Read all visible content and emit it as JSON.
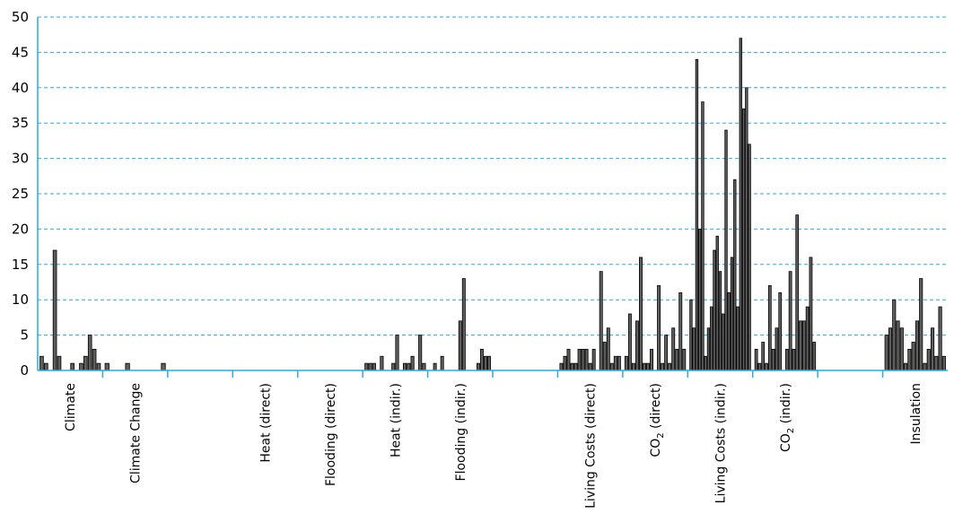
{
  "chart_data": {
    "type": "bar",
    "title": "",
    "xlabel": "",
    "ylabel": "",
    "ylim": [
      0,
      50
    ],
    "yticks": [
      0,
      5,
      10,
      15,
      20,
      25,
      30,
      35,
      40,
      45,
      50
    ],
    "grid": true,
    "legend": "none",
    "colors": {
      "bar": "#5f5f5f",
      "bar_edge": "#000000",
      "grid": "#29aae1",
      "axis": "#29aae1"
    },
    "categories": [
      {
        "label": "Climate",
        "values": [
          2,
          1,
          0,
          17,
          2,
          0,
          0,
          1,
          0,
          1,
          2,
          5,
          3,
          1
        ]
      },
      {
        "label": "Climate Change",
        "values": [
          1,
          0,
          0,
          0,
          1,
          0,
          0,
          0,
          0,
          0,
          0,
          1
        ]
      },
      {
        "label": "",
        "values": []
      },
      {
        "label": "Heat (direct)",
        "values": []
      },
      {
        "label": "Flooding (direct)",
        "values": []
      },
      {
        "label": "Heat (indir.)",
        "values": [
          1,
          1,
          1,
          0,
          2,
          0,
          0,
          1,
          5,
          0,
          1,
          1,
          2,
          0,
          5,
          1
        ]
      },
      {
        "label": "Flooding (indir.)",
        "values": [
          0,
          1,
          0,
          2,
          0,
          0,
          0,
          0,
          7,
          13,
          0,
          0,
          0,
          1,
          3,
          2,
          2
        ]
      },
      {
        "label": "",
        "values": []
      },
      {
        "label": "Living Costs (direct)",
        "values": [
          1,
          2,
          3,
          1,
          1,
          3,
          3,
          3,
          1,
          3,
          0,
          14,
          4,
          6,
          1,
          2,
          2
        ]
      },
      {
        "label": "CO",
        "label_sub": "2",
        "label_suffix": " (direct)",
        "values": [
          2,
          8,
          1,
          7,
          16,
          1,
          1,
          3,
          0,
          12,
          1,
          5,
          1,
          6,
          3,
          11,
          3
        ]
      },
      {
        "label": "Living Costs (indir.)",
        "values": [
          10,
          6,
          44,
          20,
          38,
          2,
          6,
          9,
          17,
          19,
          14,
          8,
          34,
          11,
          16,
          27,
          9,
          47,
          37,
          40,
          32
        ]
      },
      {
        "label": "CO",
        "label_sub": "2",
        "label_suffix": " (indir.)",
        "values": [
          3,
          1,
          4,
          1,
          12,
          3,
          6,
          11,
          0,
          3,
          14,
          3,
          22,
          7,
          7,
          9,
          16,
          4
        ]
      },
      {
        "label": "",
        "values": []
      },
      {
        "label": "Insulation",
        "values": [
          5,
          6,
          10,
          7,
          6,
          1,
          3,
          4,
          7,
          13,
          1,
          3,
          6,
          2,
          9,
          2
        ]
      }
    ]
  }
}
